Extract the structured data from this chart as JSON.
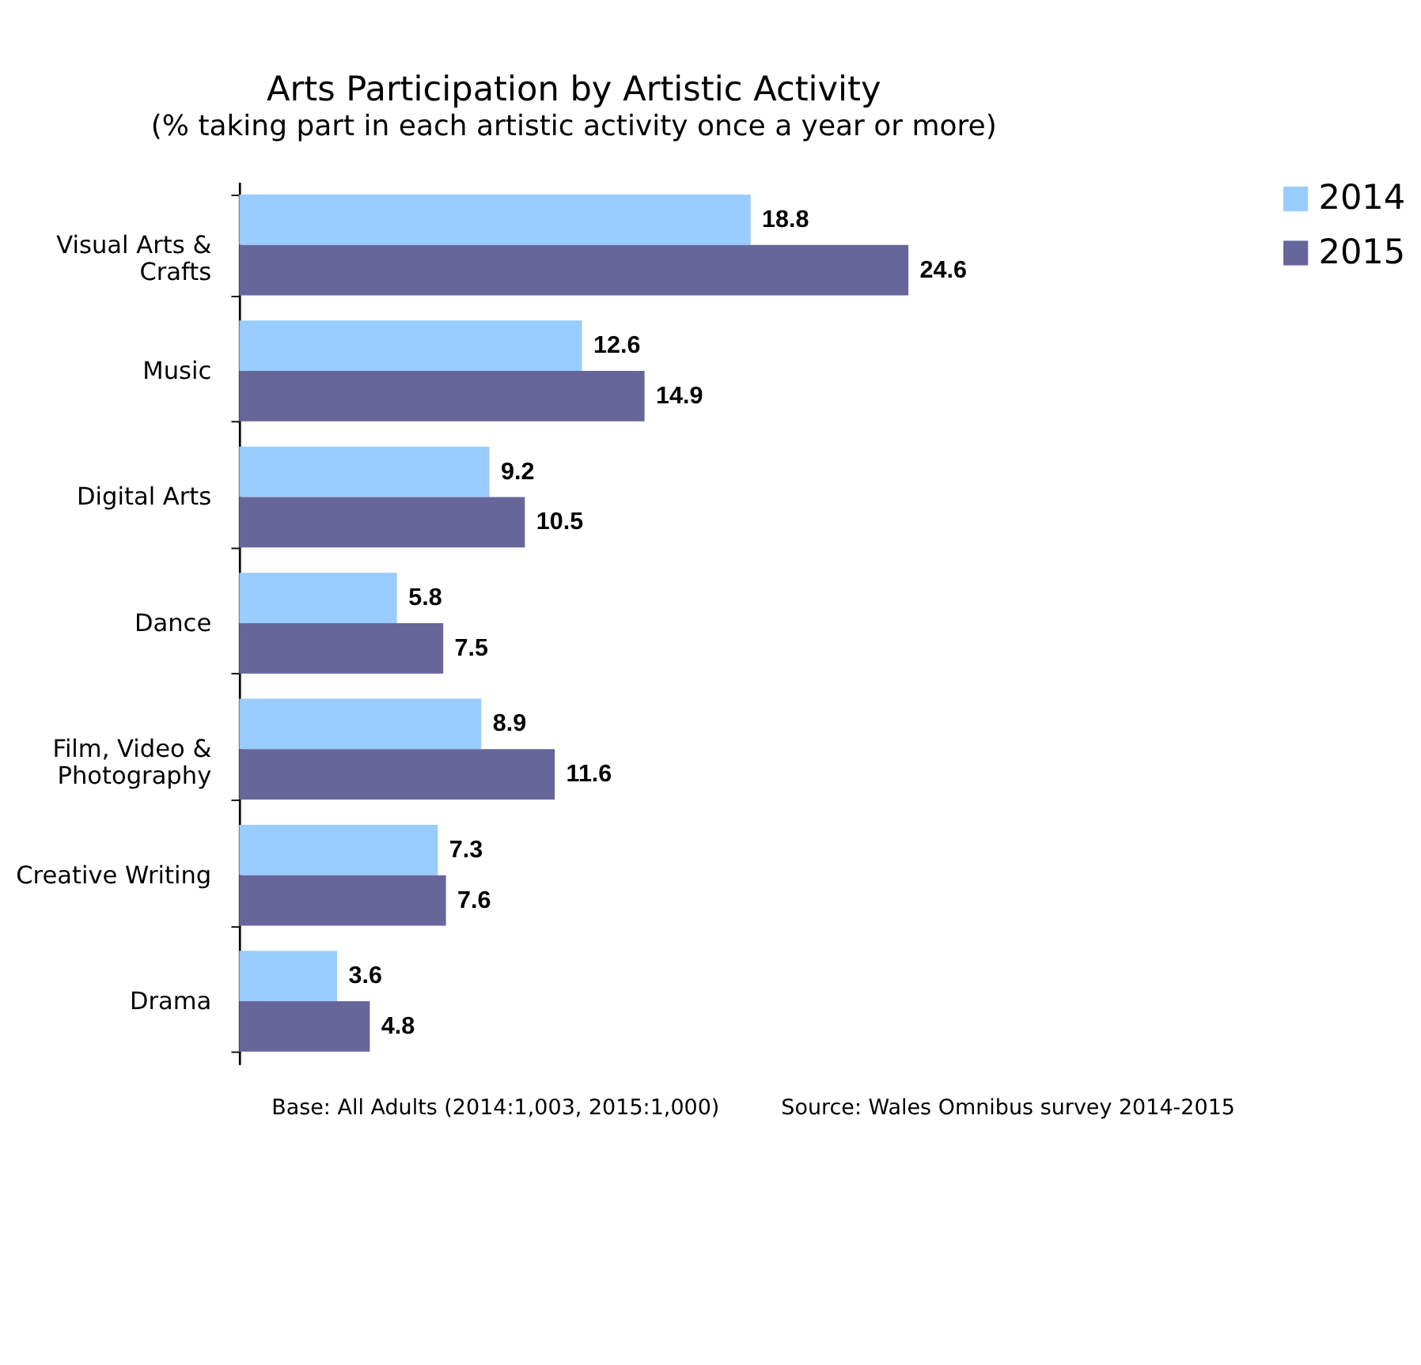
{
  "chart_data": {
    "type": "bar",
    "orientation": "horizontal",
    "title": "Arts Participation by Artistic Activity",
    "subtitle": "(% taking part in each artistic activity once a year or more)",
    "categories": [
      "Visual Arts & Crafts",
      "Music",
      "Digital Arts",
      "Dance",
      "Film, Video & Photography",
      "Creative Writing",
      "Drama"
    ],
    "series": [
      {
        "name": "2014",
        "color": "#99ccff",
        "values": [
          18.8,
          12.6,
          9.2,
          5.8,
          8.9,
          7.3,
          3.6
        ]
      },
      {
        "name": "2015",
        "color": "#66669a",
        "values": [
          24.6,
          14.9,
          10.5,
          7.5,
          11.6,
          7.6,
          4.8
        ]
      }
    ],
    "tick_labels": "y",
    "data_labels": true,
    "legend": "right",
    "grid": false,
    "annotations": [
      "Base: All Adults (2014:1,003, 2015:1,000)",
      "Source: Wales Omnibus survey 2014-2015"
    ]
  }
}
